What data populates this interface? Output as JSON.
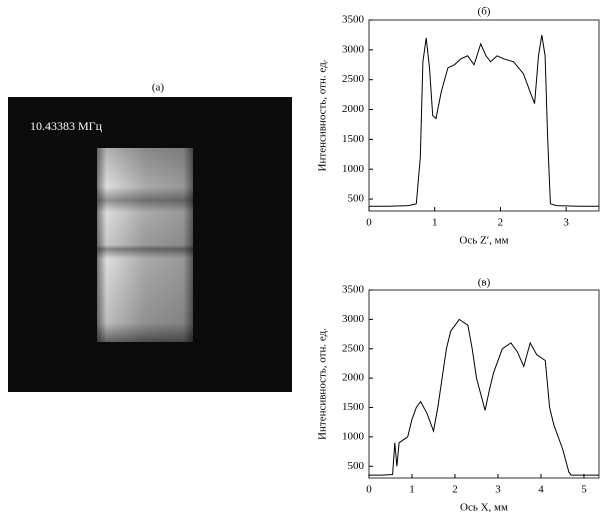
{
  "image_panel": {
    "label": "(а)",
    "caption": "10.43383 МГц"
  },
  "chart_data": [
    {
      "type": "line",
      "title": "(б)",
      "x_label": "Ось Z′, мм",
      "y_label": "Интенсивность, отн. ед.",
      "xlim": [
        0,
        3.5
      ],
      "ylim": [
        300,
        3500
      ],
      "xticks": [
        0,
        1,
        2,
        3
      ],
      "yticks": [
        500,
        1000,
        1500,
        2000,
        2500,
        3000,
        3500
      ],
      "color": "#000000",
      "x": [
        0,
        0.3,
        0.6,
        0.72,
        0.78,
        0.82,
        0.87,
        0.92,
        0.97,
        1.02,
        1.1,
        1.2,
        1.3,
        1.4,
        1.5,
        1.6,
        1.7,
        1.78,
        1.85,
        1.95,
        2.05,
        2.2,
        2.35,
        2.45,
        2.52,
        2.58,
        2.63,
        2.68,
        2.72,
        2.76,
        2.85,
        3.2,
        3.5
      ],
      "values": [
        380,
        380,
        390,
        420,
        1200,
        2800,
        3200,
        2700,
        1900,
        1850,
        2300,
        2700,
        2750,
        2850,
        2900,
        2750,
        3100,
        2900,
        2800,
        2900,
        2850,
        2800,
        2600,
        2300,
        2100,
        2900,
        3250,
        2900,
        1500,
        420,
        390,
        380,
        380
      ]
    },
    {
      "type": "line",
      "title": "(в)",
      "x_label": "Ось X, мм",
      "y_label": "Интенсивность, отн. ед.",
      "xlim": [
        0,
        5.35
      ],
      "ylim": [
        300,
        3500
      ],
      "xticks": [
        0,
        1,
        2,
        3,
        4,
        5
      ],
      "yticks": [
        500,
        1000,
        1500,
        2000,
        2500,
        3000,
        3500
      ],
      "color": "#000000",
      "x": [
        0,
        0.3,
        0.55,
        0.6,
        0.65,
        0.7,
        0.8,
        0.9,
        1.0,
        1.1,
        1.2,
        1.35,
        1.5,
        1.6,
        1.7,
        1.8,
        1.9,
        2.1,
        2.3,
        2.4,
        2.5,
        2.7,
        2.8,
        2.9,
        3.1,
        3.3,
        3.45,
        3.6,
        3.75,
        3.9,
        4.1,
        4.2,
        4.3,
        4.5,
        4.65,
        4.7,
        5.0,
        5.35
      ],
      "values": [
        350,
        350,
        360,
        900,
        500,
        900,
        950,
        1000,
        1300,
        1500,
        1600,
        1400,
        1100,
        1500,
        2000,
        2500,
        2800,
        3000,
        2900,
        2500,
        2000,
        1450,
        1800,
        2100,
        2500,
        2600,
        2450,
        2200,
        2600,
        2400,
        2300,
        1500,
        1200,
        800,
        400,
        350,
        350,
        350
      ]
    }
  ]
}
